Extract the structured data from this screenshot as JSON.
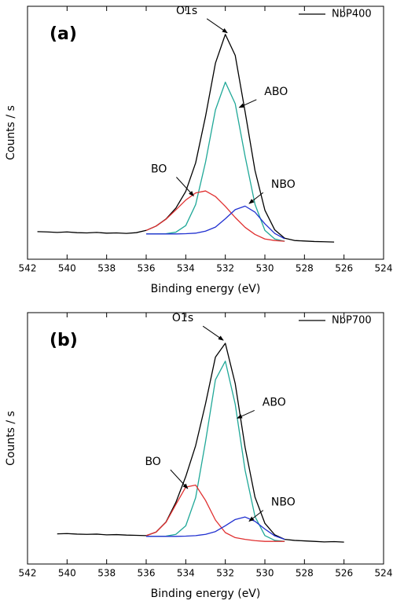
{
  "chart_data": [
    {
      "type": "line",
      "panel_label": "(a)",
      "xlabel": "Binding energy (eV)",
      "ylabel": "Counts / s",
      "xlim": [
        542,
        524
      ],
      "xticks": [
        542,
        540,
        538,
        536,
        534,
        532,
        530,
        528,
        526,
        524
      ],
      "ylim": [
        0,
        100
      ],
      "legend": "upper right",
      "x": [
        541.5,
        541,
        540.5,
        540,
        539.5,
        539,
        538.5,
        538,
        537.5,
        537,
        536.5,
        536,
        535.5,
        535,
        534.5,
        534,
        533.5,
        533,
        532.5,
        532,
        531.5,
        531,
        530.5,
        530,
        529.5,
        529,
        528.5,
        528,
        527.5,
        527,
        526.5
      ],
      "series": [
        {
          "name": "NbP400",
          "color": "#000000",
          "values": [
            10.9,
            10.8,
            10.6,
            10.8,
            10.5,
            10.4,
            10.6,
            10.3,
            10.4,
            10.2,
            10.5,
            11.4,
            13.1,
            15.9,
            20.2,
            26.8,
            38.1,
            56.5,
            77.5,
            88.9,
            80.6,
            58.3,
            35.1,
            19.4,
            11.6,
            8.3,
            7.4,
            7.2,
            7.0,
            6.9,
            6.8
          ]
        },
        {
          "color": "#20a898",
          "values": [
            null,
            null,
            null,
            null,
            null,
            null,
            null,
            null,
            null,
            null,
            null,
            10,
            10,
            10.1,
            10.7,
            13.3,
            21.6,
            38.4,
            59.0,
            70,
            61.5,
            40.7,
            21.7,
            11.4,
            8,
            7.1,
            null,
            null,
            null,
            null,
            null
          ]
        },
        {
          "color": "#e03030",
          "values": [
            null,
            null,
            null,
            null,
            null,
            null,
            null,
            null,
            null,
            null,
            null,
            11.4,
            13.1,
            15.8,
            19.5,
            23.4,
            26.2,
            27.0,
            24.8,
            20.9,
            16.5,
            12.6,
            9.8,
            8,
            7.4,
            7.1,
            null,
            null,
            null,
            null,
            null
          ]
        },
        {
          "color": "#2030d0",
          "values": [
            null,
            null,
            null,
            null,
            null,
            null,
            null,
            null,
            null,
            null,
            null,
            10,
            10,
            10,
            10,
            10.1,
            10.3,
            11.1,
            12.7,
            16,
            19.6,
            21,
            18.6,
            14,
            10.2,
            8.1,
            null,
            null,
            null,
            null,
            null
          ]
        }
      ],
      "annotations": [
        {
          "text": "O1s",
          "x": 531.9,
          "y": 89.5
        },
        {
          "text": "ABO",
          "x": 531.3,
          "y": 60
        },
        {
          "text": "BO",
          "x": 533.6,
          "y": 25
        },
        {
          "text": "NBO",
          "x": 530.8,
          "y": 22
        }
      ]
    },
    {
      "type": "line",
      "panel_label": "(b)",
      "xlabel": "Binding energy (eV)",
      "ylabel": "Counts / s",
      "xlim": [
        542,
        524
      ],
      "xticks": [
        542,
        540,
        538,
        536,
        534,
        532,
        530,
        528,
        526,
        524
      ],
      "ylim": [
        0,
        100
      ],
      "legend": "upper right",
      "x": [
        540.5,
        540,
        539.5,
        539,
        538.5,
        538,
        537.5,
        537,
        536.5,
        536,
        535.5,
        535,
        534.5,
        534,
        533.5,
        533,
        532.5,
        532,
        531.5,
        531,
        530.5,
        530,
        529.5,
        529,
        528.5,
        528,
        527.5,
        527,
        526.5,
        526
      ],
      "series": [
        {
          "name": "NbP700",
          "color": "#000000",
          "values": [
            12.0,
            12.1,
            11.9,
            11.8,
            11.9,
            11.6,
            11.7,
            11.5,
            11.4,
            11.3,
            12.7,
            16.7,
            24.5,
            34.8,
            47.1,
            63.8,
            82.3,
            87.8,
            71.8,
            46.4,
            26.6,
            16.2,
            11.6,
            9.8,
            9.4,
            9.2,
            9.0,
            8.8,
            8.9,
            8.7
          ]
        },
        {
          "color": "#20a898",
          "values": [
            null,
            null,
            null,
            null,
            null,
            null,
            null,
            null,
            null,
            11,
            11,
            11.1,
            11.8,
            15.2,
            26.4,
            48.7,
            73.3,
            80.7,
            63.6,
            37.3,
            18.9,
            11.3,
            9.4,
            9,
            null,
            null,
            null,
            null,
            null,
            null
          ]
        },
        {
          "color": "#e03030",
          "values": [
            null,
            null,
            null,
            null,
            null,
            null,
            null,
            null,
            null,
            11.3,
            12.7,
            16.6,
            23.7,
            30.6,
            31.4,
            25.3,
            17.5,
            12.5,
            10.5,
            9.8,
            9.3,
            9,
            9,
            9,
            null,
            null,
            null,
            null,
            null,
            null
          ]
        },
        {
          "color": "#2030d0",
          "values": [
            null,
            null,
            null,
            null,
            null,
            null,
            null,
            null,
            null,
            11,
            11,
            11,
            11,
            11.1,
            11.3,
            11.8,
            12.9,
            15.2,
            17.7,
            18.7,
            17,
            13.9,
            11.2,
            9.8,
            null,
            null,
            null,
            null,
            null,
            null
          ]
        }
      ],
      "annotations": [
        {
          "text": "O1s",
          "x": 532.1,
          "y": 89
        },
        {
          "text": "ABO",
          "x": 531.4,
          "y": 58
        },
        {
          "text": "BO",
          "x": 533.9,
          "y": 30
        },
        {
          "text": "NBO",
          "x": 530.8,
          "y": 17
        }
      ]
    }
  ]
}
